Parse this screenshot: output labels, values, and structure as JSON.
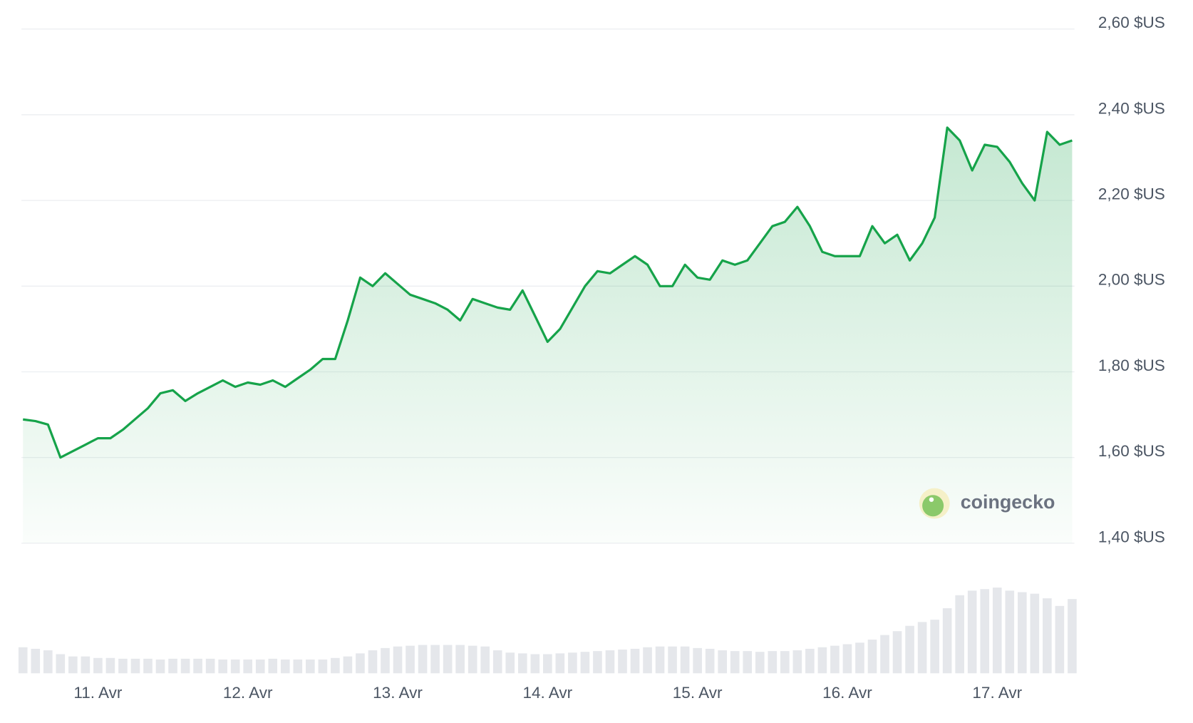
{
  "chart_data": {
    "type": "line",
    "categories": [
      null,
      null,
      null,
      null,
      null,
      null,
      "11. Avr",
      null,
      null,
      null,
      null,
      null,
      null,
      null,
      null,
      null,
      null,
      null,
      "12. Avr",
      null,
      null,
      null,
      null,
      null,
      null,
      null,
      null,
      null,
      null,
      null,
      "13. Avr",
      null,
      null,
      null,
      null,
      null,
      null,
      null,
      null,
      null,
      null,
      null,
      "14. Avr",
      null,
      null,
      null,
      null,
      null,
      null,
      null,
      null,
      null,
      null,
      null,
      "15. Avr",
      null,
      null,
      null,
      null,
      null,
      null,
      null,
      null,
      null,
      null,
      null,
      "16. Avr",
      null,
      null,
      null,
      null,
      null,
      null,
      null,
      null,
      null,
      null,
      null,
      "17. Avr",
      null,
      null,
      null,
      null,
      null,
      null
    ],
    "series": [
      {
        "type": "line",
        "color": "#16a34a",
        "values": [
          1.689,
          1.685,
          1.677,
          1.6,
          1.615,
          1.63,
          1.645,
          1.645,
          1.665,
          1.69,
          1.715,
          1.75,
          1.757,
          1.732,
          1.75,
          1.765,
          1.78,
          1.765,
          1.775,
          1.77,
          1.78,
          1.765,
          1.785,
          1.805,
          1.83,
          1.83,
          1.92,
          2.02,
          2.0,
          2.03,
          2.005,
          1.98,
          1.97,
          1.96,
          1.945,
          1.92,
          1.97,
          1.96,
          1.95,
          1.945,
          1.99,
          1.93,
          1.87,
          1.9,
          1.95,
          2.0,
          2.035,
          2.03,
          2.05,
          2.07,
          2.05,
          2.0,
          2.0,
          2.05,
          2.02,
          2.015,
          2.06,
          2.05,
          2.06,
          2.1,
          2.14,
          2.15,
          2.185,
          2.14,
          2.08,
          2.07,
          2.07,
          2.07,
          2.14,
          2.1,
          2.12,
          2.06,
          2.1,
          2.16,
          2.37,
          2.34,
          2.27,
          2.33,
          2.325,
          2.29,
          2.24,
          2.2,
          2.36,
          2.33,
          2.34
        ]
      },
      {
        "type": "bar",
        "axis": "y2",
        "color": "#e5e7eb",
        "values": [
          34,
          32,
          30,
          25,
          22,
          22,
          20,
          20,
          19,
          19,
          19,
          18,
          19,
          19,
          19,
          19,
          18,
          18,
          18,
          18,
          19,
          18,
          18,
          18,
          18,
          20,
          22,
          26,
          30,
          33,
          35,
          36,
          37,
          37,
          37,
          37,
          36,
          35,
          30,
          27,
          26,
          25,
          25,
          26,
          27,
          28,
          29,
          30,
          31,
          32,
          34,
          35,
          35,
          35,
          33,
          32,
          30,
          29,
          29,
          28,
          29,
          29,
          30,
          32,
          34,
          36,
          38,
          40,
          44,
          50,
          55,
          62,
          67,
          70,
          85,
          102,
          108,
          110,
          112,
          108,
          106,
          104,
          98,
          88,
          97
        ]
      }
    ],
    "ylim": [
      1.4,
      2.6
    ],
    "yticks": [
      {
        "value": 1.4,
        "label": "1,40 $US"
      },
      {
        "value": 1.6,
        "label": "1,60 $US"
      },
      {
        "value": 1.8,
        "label": "1,80 $US"
      },
      {
        "value": 2.0,
        "label": "2,00 $US"
      },
      {
        "value": 2.2,
        "label": "2,20 $US"
      },
      {
        "value": 2.4,
        "label": "2,40 $US"
      },
      {
        "value": 2.6,
        "label": "2,60 $US"
      }
    ],
    "y2lim": [
      0,
      120
    ],
    "grid": true,
    "watermark": "coingecko"
  }
}
